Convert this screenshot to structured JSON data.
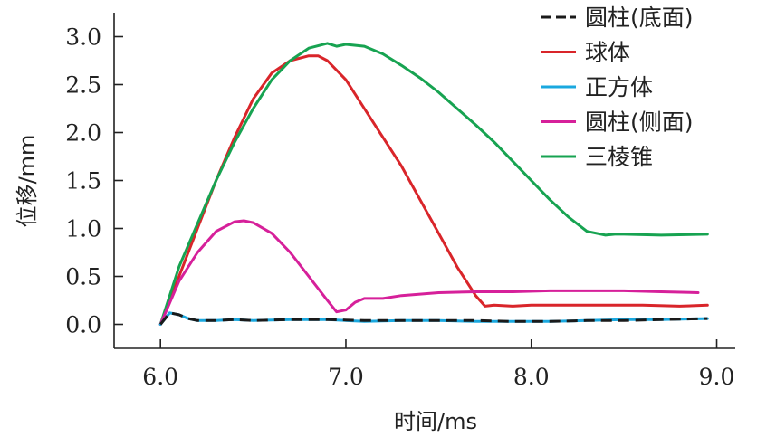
{
  "chart_data": {
    "type": "line",
    "title": "",
    "xlabel": "时间/ms",
    "ylabel": "位移/mm",
    "xlim": [
      5.75,
      9.1
    ],
    "ylim": [
      -0.25,
      3.25
    ],
    "xticks": [
      6.0,
      7.0,
      8.0,
      9.0
    ],
    "xtick_labels": [
      "6.0",
      "7.0",
      "8.0",
      "9.0"
    ],
    "yticks": [
      0.0,
      0.5,
      1.0,
      1.5,
      2.0,
      2.5,
      3.0
    ],
    "ytick_labels": [
      "0.0",
      "0.5",
      "1.0",
      "1.5",
      "2.0",
      "2.5",
      "3.0"
    ],
    "grid": false,
    "legend_position": "top-right",
    "series": [
      {
        "name": "圆柱(底面)",
        "color": "#1a1a1a",
        "dash": "dashed",
        "x": [
          6.0,
          6.05,
          6.1,
          6.15,
          6.2,
          6.3,
          6.4,
          6.5,
          6.7,
          6.9,
          7.1,
          7.3,
          7.5,
          7.7,
          7.9,
          8.1,
          8.3,
          8.5,
          8.7,
          8.95
        ],
        "y": [
          0.0,
          0.12,
          0.1,
          0.06,
          0.04,
          0.04,
          0.05,
          0.04,
          0.05,
          0.05,
          0.04,
          0.04,
          0.04,
          0.04,
          0.03,
          0.03,
          0.04,
          0.04,
          0.05,
          0.06
        ]
      },
      {
        "name": "球体",
        "color": "#d9252a",
        "dash": "solid",
        "x": [
          6.0,
          6.1,
          6.2,
          6.3,
          6.4,
          6.5,
          6.6,
          6.7,
          6.8,
          6.85,
          6.9,
          7.0,
          7.1,
          7.2,
          7.3,
          7.4,
          7.5,
          7.6,
          7.7,
          7.75,
          7.8,
          7.9,
          8.0,
          8.2,
          8.4,
          8.6,
          8.8,
          8.95
        ],
        "y": [
          0.0,
          0.5,
          1.0,
          1.5,
          1.95,
          2.35,
          2.62,
          2.75,
          2.8,
          2.8,
          2.75,
          2.55,
          2.25,
          1.95,
          1.65,
          1.3,
          0.95,
          0.6,
          0.3,
          0.19,
          0.2,
          0.19,
          0.2,
          0.2,
          0.2,
          0.2,
          0.19,
          0.2
        ]
      },
      {
        "name": "正方体",
        "color": "#1aa8df",
        "dash": "solid",
        "x": [
          6.0,
          6.05,
          6.1,
          6.15,
          6.2,
          6.3,
          6.4,
          6.5,
          6.7,
          6.9,
          7.1,
          7.3,
          7.5,
          7.7,
          7.9,
          8.1,
          8.3,
          8.5,
          8.7,
          8.95
        ],
        "y": [
          0.0,
          0.12,
          0.1,
          0.06,
          0.04,
          0.04,
          0.05,
          0.04,
          0.05,
          0.05,
          0.03,
          0.04,
          0.04,
          0.03,
          0.03,
          0.03,
          0.04,
          0.05,
          0.05,
          0.06
        ]
      },
      {
        "name": "圆柱(侧面)",
        "color": "#d6209a",
        "dash": "solid",
        "x": [
          6.0,
          6.1,
          6.2,
          6.3,
          6.4,
          6.45,
          6.5,
          6.6,
          6.7,
          6.8,
          6.9,
          6.95,
          7.0,
          7.05,
          7.1,
          7.2,
          7.3,
          7.5,
          7.7,
          7.9,
          8.1,
          8.3,
          8.5,
          8.7,
          8.9
        ],
        "y": [
          0.0,
          0.45,
          0.75,
          0.97,
          1.07,
          1.08,
          1.06,
          0.95,
          0.75,
          0.5,
          0.25,
          0.13,
          0.15,
          0.23,
          0.27,
          0.27,
          0.3,
          0.33,
          0.34,
          0.34,
          0.35,
          0.35,
          0.35,
          0.34,
          0.33
        ]
      },
      {
        "name": "三棱锥",
        "color": "#17a351",
        "dash": "solid",
        "x": [
          6.0,
          6.1,
          6.2,
          6.3,
          6.4,
          6.5,
          6.6,
          6.7,
          6.8,
          6.9,
          6.95,
          7.0,
          7.1,
          7.2,
          7.3,
          7.4,
          7.5,
          7.6,
          7.7,
          7.8,
          7.9,
          8.0,
          8.1,
          8.2,
          8.3,
          8.4,
          8.45,
          8.5,
          8.7,
          8.95
        ],
        "y": [
          0.0,
          0.6,
          1.05,
          1.5,
          1.9,
          2.25,
          2.55,
          2.75,
          2.88,
          2.93,
          2.9,
          2.92,
          2.9,
          2.82,
          2.7,
          2.57,
          2.42,
          2.25,
          2.08,
          1.9,
          1.7,
          1.5,
          1.3,
          1.12,
          0.97,
          0.93,
          0.94,
          0.94,
          0.93,
          0.94
        ]
      }
    ]
  }
}
